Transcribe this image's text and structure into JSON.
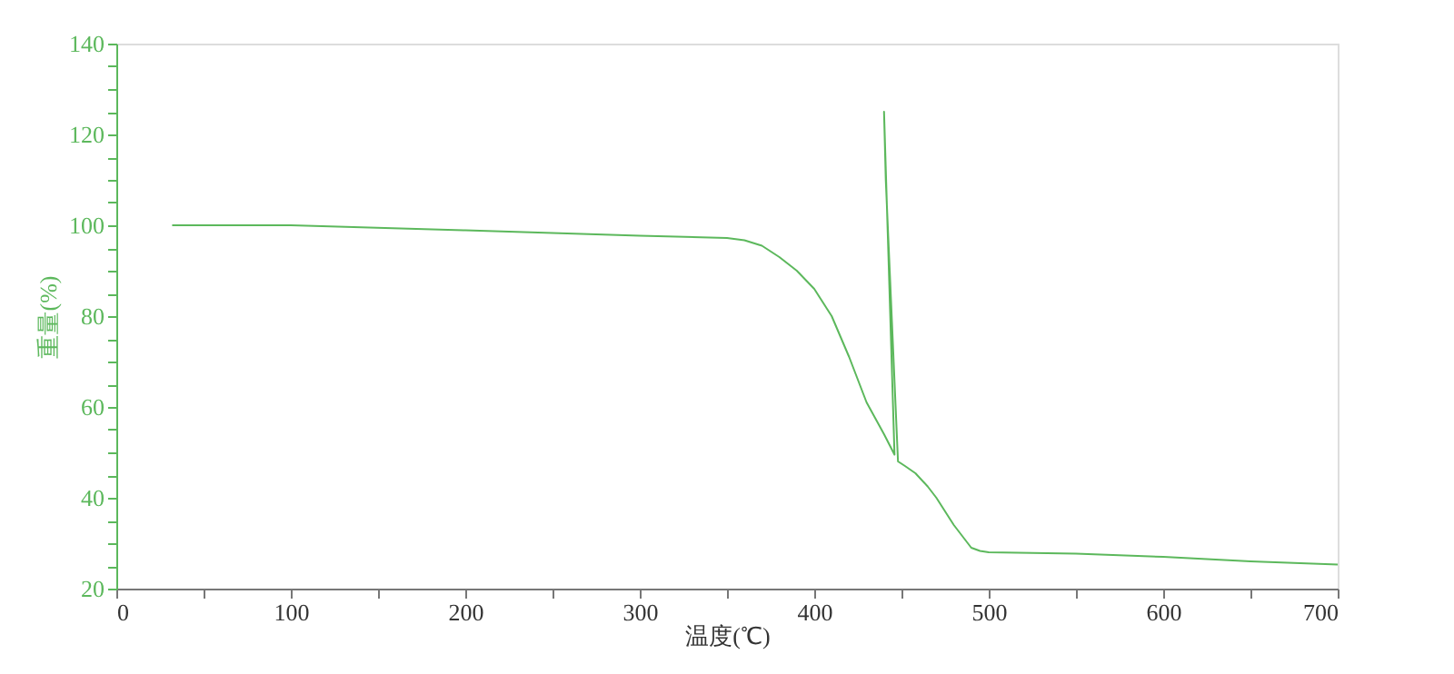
{
  "chart_data": {
    "type": "line",
    "xlabel": "温度(℃)",
    "ylabel": "重量(%)",
    "x": [
      32,
      100,
      200,
      300,
      350,
      360,
      370,
      380,
      390,
      400,
      410,
      420,
      430,
      440,
      446,
      440,
      441,
      448,
      452,
      458,
      465,
      470,
      480,
      490,
      495,
      500,
      550,
      600,
      650,
      700
    ],
    "series": [
      {
        "color": "#5cb85c",
        "values": [
          100,
          100,
          98.9,
          97.7,
          97.2,
          96.7,
          95.5,
          93,
          90,
          86,
          80,
          71,
          61,
          54,
          49.5,
          125,
          110,
          48,
          47,
          45.4,
          42.5,
          40,
          34,
          29,
          28.3,
          28,
          27.7,
          27,
          26,
          25.3
        ]
      }
    ],
    "xlim": [
      0,
      700
    ],
    "ylim": [
      20,
      140
    ],
    "xticks": [
      0,
      {
        "value": 50,
        "label": null
      },
      100,
      {
        "value": 150,
        "label": null
      },
      200,
      {
        "value": 250,
        "label": null
      },
      300,
      {
        "value": 350,
        "label": null
      },
      400,
      {
        "value": 450,
        "label": null
      },
      500,
      {
        "value": 550,
        "label": null
      },
      600,
      {
        "value": 650,
        "label": null
      },
      700
    ],
    "yticks": [
      20,
      {
        "value": 25,
        "label": null
      },
      {
        "value": 30,
        "label": null
      },
      {
        "value": 35,
        "label": null
      },
      40,
      {
        "value": 45,
        "label": null
      },
      {
        "value": 50,
        "label": null
      },
      {
        "value": 55,
        "label": null
      },
      60,
      {
        "value": 65,
        "label": null
      },
      {
        "value": 70,
        "label": null
      },
      {
        "value": 75,
        "label": null
      },
      80,
      {
        "value": 85,
        "label": null
      },
      {
        "value": 90,
        "label": null
      },
      {
        "value": 95,
        "label": null
      },
      100,
      {
        "value": 105,
        "label": null
      },
      {
        "value": 110,
        "label": null
      },
      {
        "value": 115,
        "label": null
      },
      120,
      {
        "value": 125,
        "label": null
      },
      {
        "value": 130,
        "label": null
      },
      {
        "value": 135,
        "label": null
      },
      140
    ],
    "grid": false,
    "legend": false,
    "marker": "none",
    "line_style": "solid"
  }
}
